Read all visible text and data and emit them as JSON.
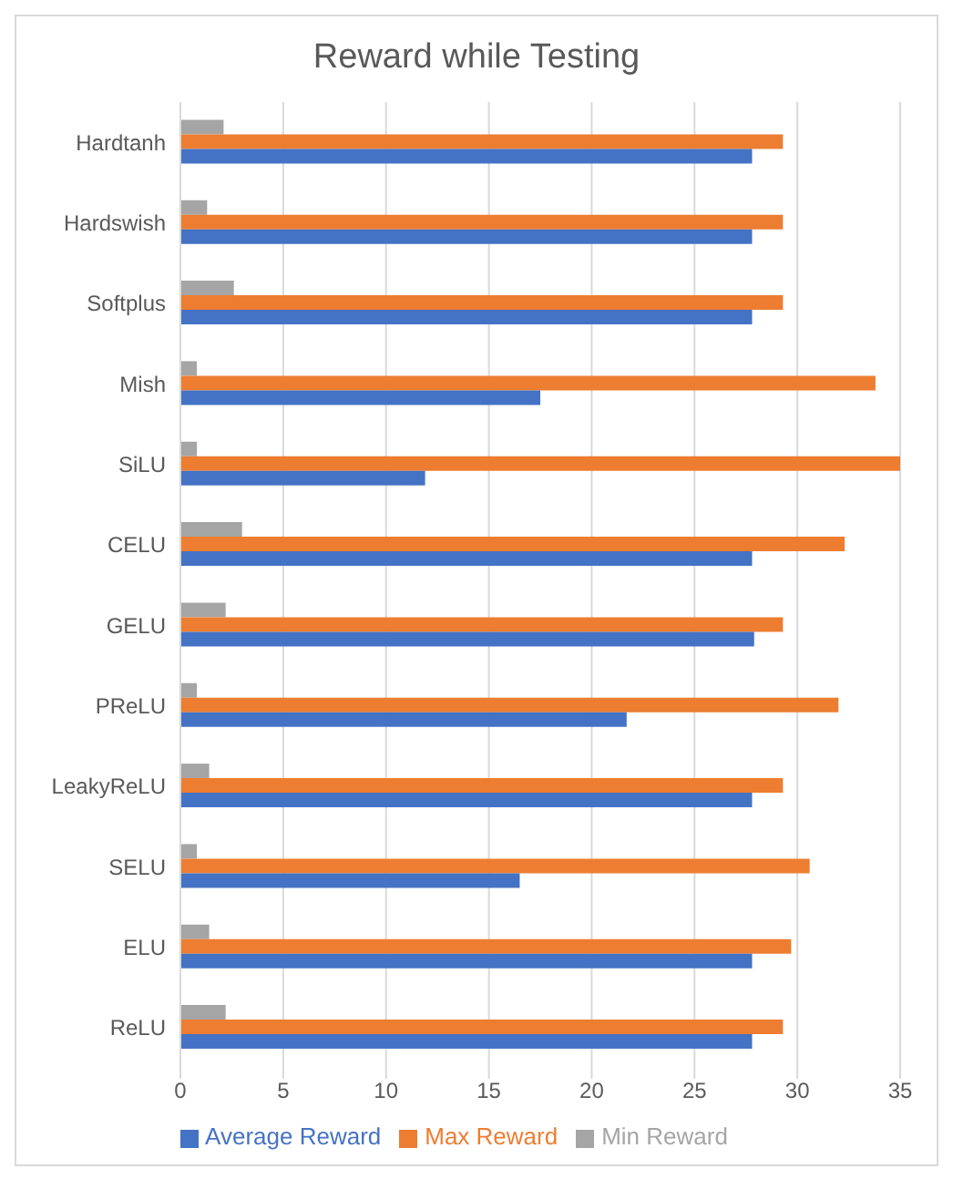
{
  "chart_data": {
    "type": "bar",
    "orientation": "horizontal",
    "title": "Reward while Testing",
    "categories": [
      "Hardtanh",
      "Hardswish",
      "Softplus",
      "Mish",
      "SiLU",
      "CELU",
      "GELU",
      "PReLU",
      "LeakyReLU",
      "SELU",
      "ELU",
      "ReLU"
    ],
    "series": [
      {
        "name": "Min Reward",
        "color": "#a5a5a5",
        "values": [
          2.1,
          1.3,
          2.6,
          0.8,
          0.8,
          3.0,
          2.2,
          0.8,
          1.4,
          0.8,
          1.4,
          2.2
        ]
      },
      {
        "name": "Max Reward",
        "color": "#ed7d31",
        "values": [
          29.3,
          29.3,
          29.3,
          33.8,
          35,
          32.3,
          29.3,
          32.0,
          29.3,
          30.6,
          29.7,
          29.3
        ]
      },
      {
        "name": "Average Reward",
        "color": "#4472c4",
        "values": [
          27.8,
          27.8,
          27.8,
          17.5,
          11.9,
          27.8,
          27.9,
          21.7,
          27.8,
          16.5,
          27.8,
          27.8
        ]
      }
    ],
    "xlim": [
      0,
      35
    ],
    "xticks": [
      0,
      5,
      10,
      15,
      20,
      25,
      30,
      35
    ],
    "grid": "x",
    "legend": "bottom"
  }
}
